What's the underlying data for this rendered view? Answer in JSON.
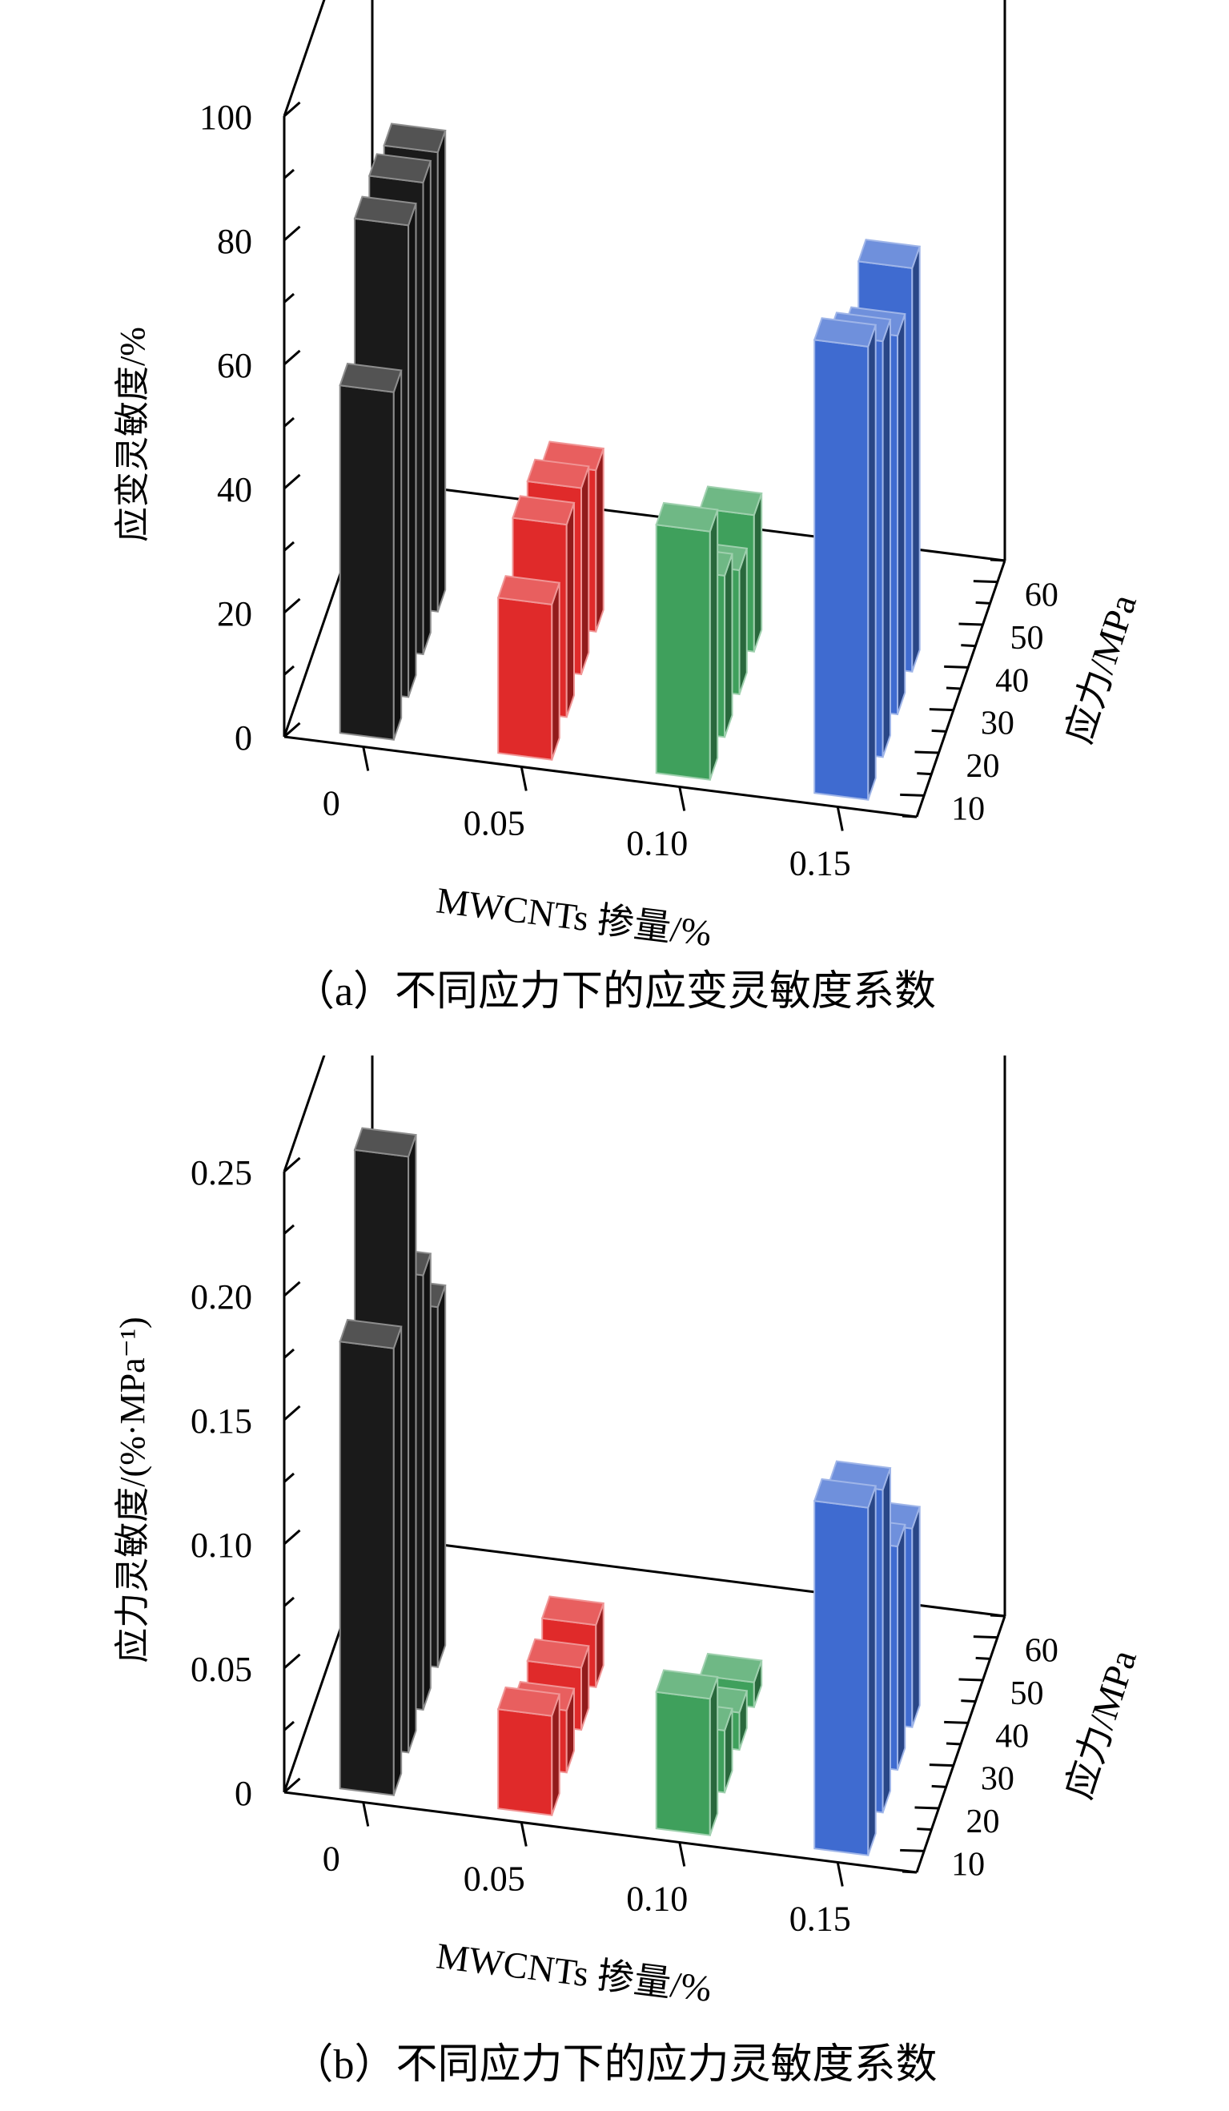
{
  "chart_data": [
    {
      "type": "bar3d",
      "title": "（a）不同应力下的应变灵敏度系数",
      "xlabel": "MWCNTs 掺量/%",
      "ylabel": "应力/MPa",
      "zlabel": "应变灵敏度/%",
      "categories": [
        "0",
        "0.05",
        "0.10",
        "0.15"
      ],
      "depth_ticks": [
        "10",
        "20",
        "30",
        "40",
        "50",
        "60"
      ],
      "z_ticks": [
        "0",
        "20",
        "40",
        "60",
        "80",
        "100"
      ],
      "zlim": [
        0,
        100
      ],
      "series": [
        {
          "name": "10",
          "values": [
            56,
            25,
            40,
            73
          ]
        },
        {
          "name": "20",
          "values": [
            76,
            31,
            26,
            67
          ]
        },
        {
          "name": "30",
          "values": [
            76,
            30,
            20,
            61
          ]
        },
        {
          "name": "40",
          "values": [
            74,
            26,
            22,
            65
          ]
        },
        {
          "name": "50",
          "values": null
        },
        {
          "name": "60",
          "values": null
        }
      ],
      "colors": [
        "#1a1a1a",
        "#e02a2a",
        "#3fa05c",
        "#3f6bd0"
      ]
    },
    {
      "type": "bar3d",
      "title": "（b）不同应力下的应力灵敏度系数",
      "xlabel": "MWCNTs 掺量/%",
      "ylabel": "应力/MPa",
      "zlabel": "应力灵敏度/(%·MPa⁻¹)",
      "categories": [
        "0",
        "0.05",
        "0.10",
        "0.15"
      ],
      "depth_ticks": [
        "10",
        "20",
        "30",
        "40",
        "50",
        "60"
      ],
      "z_ticks": [
        "0",
        "0.05",
        "0.10",
        "0.15",
        "0.20",
        "0.25"
      ],
      "zlim": [
        0,
        0.25
      ],
      "series": [
        {
          "name": "10",
          "values": [
            0.18,
            0.04,
            0.055,
            0.14
          ]
        },
        {
          "name": "20",
          "values": [
            0.24,
            0.025,
            0.025,
            0.13
          ]
        },
        {
          "name": "30",
          "values": [
            0.175,
            0.025,
            0.015,
            0.09
          ]
        },
        {
          "name": "40",
          "values": [
            0.145,
            0.025,
            0.01,
            0.08
          ]
        },
        {
          "name": "50",
          "values": null
        },
        {
          "name": "60",
          "values": null
        }
      ],
      "colors": [
        "#1a1a1a",
        "#e02a2a",
        "#3fa05c",
        "#3f6bd0"
      ]
    }
  ]
}
